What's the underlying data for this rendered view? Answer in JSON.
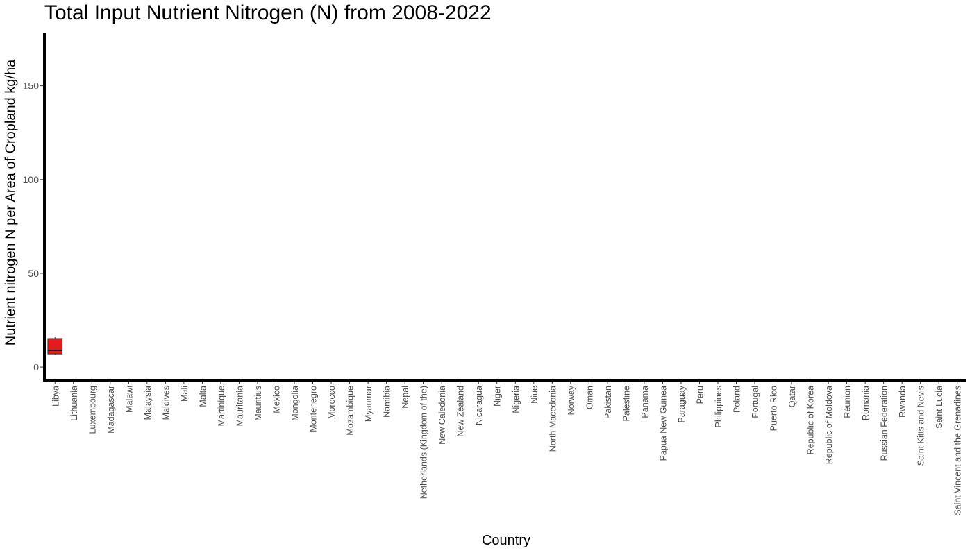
{
  "chart_data": {
    "type": "box",
    "title": "Total Input Nutrient Nitrogen (N) from 2008-2022",
    "xlabel": "Country",
    "ylabel": "Nutrient nitrogen N per Area of Cropland kg/ha",
    "ylim": [
      -7,
      178
    ],
    "yticks": [
      0,
      50,
      100,
      150
    ],
    "grid": false,
    "legend": "none",
    "categories": [
      "Libya",
      "Lithuania",
      "Luxembourg",
      "Madagascar",
      "Malawi",
      "Malaysia",
      "Maldives",
      "Mali",
      "Malta",
      "Martinique",
      "Mauritania",
      "Mauritius",
      "Mexico",
      "Mongolia",
      "Montenegro",
      "Morocco",
      "Mozambique",
      "Myanmar",
      "Namibia",
      "Nepal",
      "Netherlands (Kingdom of the)",
      "New Caledonia",
      "New Zealand",
      "Nicaragua",
      "Niger",
      "Nigeria",
      "Niue",
      "North Macedonia",
      "Norway",
      "Oman",
      "Pakistan",
      "Palestine",
      "Panama",
      "Papua New Guinea",
      "Paraguay",
      "Peru",
      "Philippines",
      "Poland",
      "Portugal",
      "Puerto Rico",
      "Qatar",
      "Republic of Korea",
      "Republic of Moldova",
      "Réunion",
      "Romania",
      "Russian Federation",
      "Rwanda",
      "Saint Kitts and Nevis",
      "Saint Lucia",
      "Saint Vincent and the Grenadines"
    ],
    "series": [
      {
        "values": [
          {
            "category": "Libya",
            "min": 6.5,
            "q1": 7.0,
            "median": 8.9,
            "q3": 15.2,
            "max": 15.9,
            "color": "#e41a1c"
          }
        ]
      }
    ]
  }
}
